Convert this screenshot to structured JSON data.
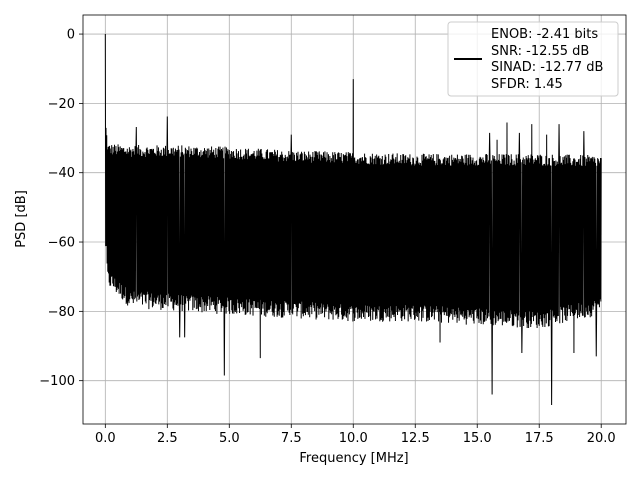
{
  "chart_data": {
    "type": "line",
    "xlabel": "Frequency [MHz]",
    "ylabel": "PSD [dB]",
    "xlim": [
      -0.9,
      21.0
    ],
    "ylim": [
      -112.5,
      5.5
    ],
    "x_ticks": [
      0.0,
      2.5,
      5.0,
      7.5,
      10.0,
      12.5,
      15.0,
      17.5,
      20.0
    ],
    "x_tick_labels": [
      "0.0",
      "2.5",
      "5.0",
      "7.5",
      "10.0",
      "12.5",
      "15.0",
      "17.5",
      "20.0"
    ],
    "y_ticks": [
      0,
      -20,
      -40,
      -60,
      -80,
      -100
    ],
    "y_tick_labels": [
      "0",
      "−20",
      "−40",
      "−60",
      "−80",
      "−100"
    ],
    "grid": true,
    "legend_position": "top-right",
    "line_color": "#000000",
    "series": [
      {
        "name": "ENOB: -2.41 bits\nSNR: -12.55 dB\nSINAD: -12.77 dB\nSFDR: 1.45",
        "legend_lines": [
          "ENOB: -2.41 bits",
          "SNR: -12.55 dB",
          "SINAD: -12.77 dB",
          "SFDR: 1.45"
        ],
        "noise_envelope": {
          "x": [
            0.0,
            0.1,
            1.0,
            3.0,
            5.0,
            7.5,
            10.0,
            12.5,
            15.0,
            17.5,
            20.0
          ],
          "upper": [
            -25.0,
            -33.0,
            -33.5,
            -33.5,
            -34.0,
            -35.0,
            -35.5,
            -36.0,
            -36.0,
            -36.0,
            -36.5
          ],
          "lower": [
            -60.0,
            -72.0,
            -78.0,
            -79.0,
            -80.0,
            -81.0,
            -82.0,
            -82.0,
            -83.0,
            -84.0,
            -80.0
          ]
        },
        "spurs": [
          {
            "x": 0.0,
            "y": 0.0
          },
          {
            "x": 1.25,
            "y": -26.8
          },
          {
            "x": 2.5,
            "y": -23.8
          },
          {
            "x": 7.5,
            "y": -29.0
          },
          {
            "x": 10.0,
            "y": -13.0
          },
          {
            "x": 15.5,
            "y": -28.5
          },
          {
            "x": 15.8,
            "y": -30.5
          },
          {
            "x": 16.2,
            "y": -25.5
          },
          {
            "x": 16.7,
            "y": -28.5
          },
          {
            "x": 17.2,
            "y": -26.0
          },
          {
            "x": 17.8,
            "y": -29.0
          },
          {
            "x": 18.3,
            "y": -26.0
          },
          {
            "x": 18.9,
            "y": -30.0
          },
          {
            "x": 19.3,
            "y": -28.0
          },
          {
            "x": 19.8,
            "y": -35.0
          }
        ],
        "dips": [
          {
            "x": 3.0,
            "y": -87.5
          },
          {
            "x": 3.2,
            "y": -87.5
          },
          {
            "x": 4.8,
            "y": -98.5
          },
          {
            "x": 6.25,
            "y": -93.5
          },
          {
            "x": 13.5,
            "y": -89.0
          },
          {
            "x": 15.6,
            "y": -104.0
          },
          {
            "x": 16.8,
            "y": -92.0
          },
          {
            "x": 18.0,
            "y": -107.0
          },
          {
            "x": 18.9,
            "y": -92.0
          },
          {
            "x": 19.8,
            "y": -93.0
          }
        ]
      }
    ]
  }
}
